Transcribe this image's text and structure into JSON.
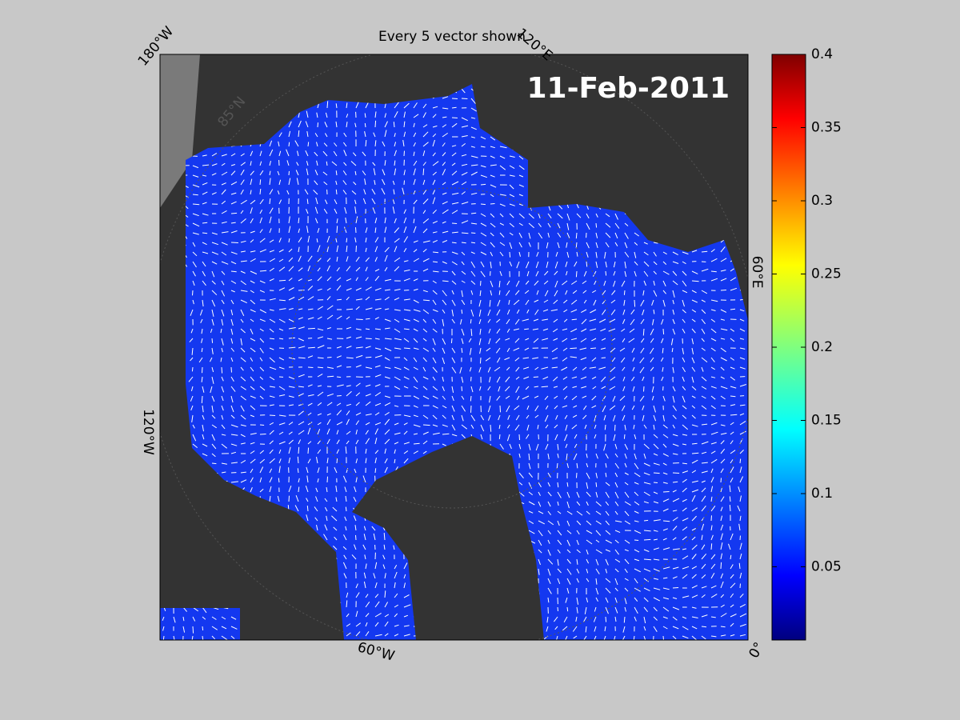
{
  "title": "Every 5 vector shown",
  "date_label": "11-Feb-2011",
  "map": {
    "longitude_labels": [
      "180°W",
      "120°E",
      "60°E",
      "0°",
      "60°W",
      "120°W"
    ],
    "latitude_labels": [
      "85°N"
    ]
  },
  "colorbar": {
    "lim": [
      0,
      0.4
    ],
    "ticks": [
      0.05,
      0.1,
      0.15,
      0.2,
      0.25,
      0.3,
      0.35,
      0.4
    ]
  }
}
